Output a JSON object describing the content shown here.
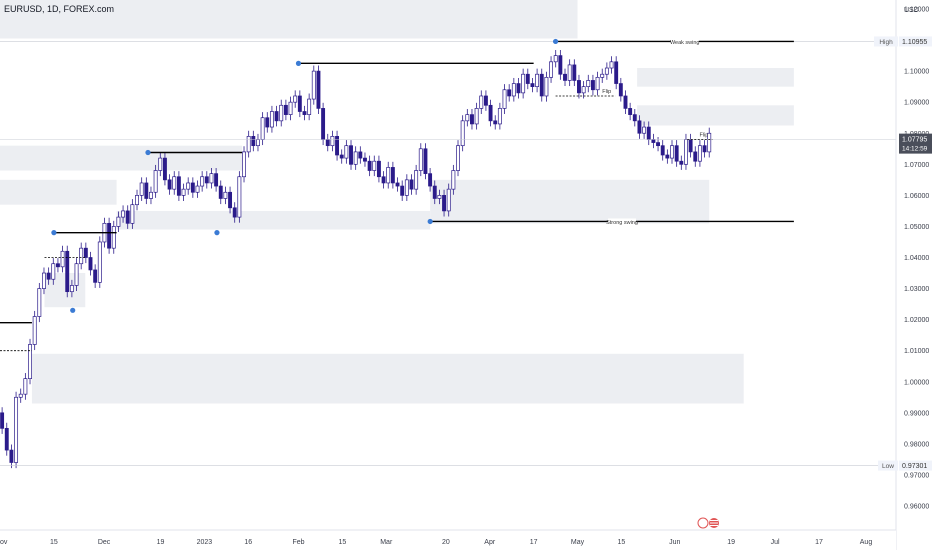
{
  "header": {
    "symbol_title": "EURUSD, 1D, FOREX.com"
  },
  "chart_data": {
    "type": "candlestick",
    "y_axis": {
      "unit": "USD",
      "ylim": [
        0.955,
        1.123
      ],
      "ticks": [
        0.96,
        0.97,
        0.98,
        0.99,
        1.0,
        1.01,
        1.02,
        1.03,
        1.04,
        1.05,
        1.06,
        1.07,
        1.08,
        1.09,
        1.1,
        1.11,
        1.12
      ],
      "tick_labels": [
        "0.96000",
        "0.97000",
        "0.98000",
        "0.99000",
        "1.00000",
        "1.01000",
        "1.02000",
        "1.03000",
        "1.04000",
        "1.05000",
        "1.06000",
        "1.07000",
        "1.08000",
        "1.09000",
        "1.10000",
        "1.11000",
        "1.12000"
      ]
    },
    "x_axis": {
      "labels": [
        {
          "date": "2022-11-01",
          "text": "ov"
        },
        {
          "date": "2022-11-15",
          "text": "15"
        },
        {
          "date": "2022-12-01",
          "text": "Dec"
        },
        {
          "date": "2022-12-19",
          "text": "19"
        },
        {
          "date": "2023-01-02",
          "text": "2023"
        },
        {
          "date": "2023-01-16",
          "text": "16"
        },
        {
          "date": "2023-02-01",
          "text": "Feb"
        },
        {
          "date": "2023-02-15",
          "text": "15"
        },
        {
          "date": "2023-03-01",
          "text": "Mar"
        },
        {
          "date": "2023-03-20",
          "text": "20"
        },
        {
          "date": "2023-04-03",
          "text": "Apr"
        },
        {
          "date": "2023-04-17",
          "text": "17"
        },
        {
          "date": "2023-05-01",
          "text": "May"
        },
        {
          "date": "2023-05-15",
          "text": "15"
        },
        {
          "date": "2023-06-01",
          "text": "Jun"
        },
        {
          "date": "2023-06-19",
          "text": "19"
        },
        {
          "date": "2023-07-03",
          "text": "Jul"
        },
        {
          "date": "2023-07-17",
          "text": "17"
        },
        {
          "date": "2023-08-01",
          "text": "Aug"
        }
      ]
    },
    "price_labels": {
      "high": {
        "label": "High",
        "value": "1.10955"
      },
      "low": {
        "label": "Low",
        "value": "0.97301"
      },
      "current": {
        "value": "1.07795",
        "countdown": "14:12:59"
      }
    },
    "candle_closes": [
      0.99,
      0.985,
      0.978,
      0.974,
      0.995,
      0.996,
      1.001,
      1.012,
      1.021,
      1.03,
      1.035,
      1.033,
      1.038,
      1.037,
      1.042,
      1.029,
      1.031,
      1.038,
      1.043,
      1.04,
      1.036,
      1.032,
      1.045,
      1.051,
      1.043,
      1.05,
      1.053,
      1.055,
      1.051,
      1.057,
      1.06,
      1.064,
      1.059,
      1.061,
      1.068,
      1.072,
      1.065,
      1.062,
      1.066,
      1.06,
      1.062,
      1.064,
      1.061,
      1.063,
      1.066,
      1.064,
      1.067,
      1.063,
      1.059,
      1.061,
      1.056,
      1.053,
      1.066,
      1.074,
      1.079,
      1.076,
      1.078,
      1.085,
      1.082,
      1.087,
      1.084,
      1.089,
      1.086,
      1.09,
      1.092,
      1.087,
      1.086,
      1.091,
      1.1,
      1.088,
      1.078,
      1.076,
      1.079,
      1.073,
      1.072,
      1.076,
      1.07,
      1.074,
      1.072,
      1.071,
      1.068,
      1.071,
      1.066,
      1.064,
      1.069,
      1.064,
      1.063,
      1.06,
      1.065,
      1.062,
      1.068,
      1.075,
      1.067,
      1.063,
      1.059,
      1.06,
      1.055,
      1.062,
      1.068,
      1.076,
      1.084,
      1.086,
      1.083,
      1.088,
      1.092,
      1.089,
      1.084,
      1.083,
      1.088,
      1.094,
      1.092,
      1.096,
      1.093,
      1.099,
      1.096,
      1.095,
      1.099,
      1.092,
      1.098,
      1.103,
      1.105,
      1.099,
      1.097,
      1.102,
      1.097,
      1.093,
      1.095,
      1.097,
      1.094,
      1.098,
      1.099,
      1.101,
      1.103,
      1.096,
      1.092,
      1.088,
      1.086,
      1.084,
      1.08,
      1.082,
      1.078,
      1.077,
      1.076,
      1.073,
      1.072,
      1.076,
      1.071,
      1.07,
      1.078,
      1.074,
      1.071,
      1.076,
      1.074,
      1.08
    ],
    "zones": [
      {
        "top": 1.1235,
        "bottom": 1.1105,
        "x0": "2022-10-25",
        "x1": "2023-05-01"
      },
      {
        "top": 1.101,
        "bottom": 1.095,
        "x0": "2023-05-20",
        "x1": "2023-07-09"
      },
      {
        "top": 1.089,
        "bottom": 1.0825,
        "x0": "2023-05-20",
        "x1": "2023-07-09"
      },
      {
        "top": 1.076,
        "bottom": 1.068,
        "x0": "2022-10-25",
        "x1": "2023-01-14"
      },
      {
        "top": 1.065,
        "bottom": 1.057,
        "x0": "2022-10-25",
        "x1": "2022-12-05"
      },
      {
        "top": 1.055,
        "bottom": 1.049,
        "x0": "2022-12-05",
        "x1": "2023-03-15"
      },
      {
        "top": 1.065,
        "bottom": 1.051,
        "x0": "2023-03-15",
        "x1": "2023-06-12"
      },
      {
        "top": 1.035,
        "bottom": 1.024,
        "x0": "2022-11-12",
        "x1": "2022-11-25"
      },
      {
        "top": 1.009,
        "bottom": 0.993,
        "x0": "2022-11-08",
        "x1": "2023-06-23"
      }
    ],
    "swing_levels": [
      {
        "y": 1.10955,
        "x0": "2023-04-24",
        "x1": "2023-07-09",
        "label": "Weak swing"
      },
      {
        "y": 1.0516,
        "x0": "2023-03-15",
        "x1": "2023-07-09",
        "label": "Strong swing"
      },
      {
        "y": 1.1025,
        "x0": "2023-02-01",
        "x1": "2023-04-17",
        "label": ""
      },
      {
        "y": 1.0738,
        "x0": "2022-12-15",
        "x1": "2023-01-14",
        "label": ""
      },
      {
        "y": 1.048,
        "x0": "2022-11-15",
        "x1": "2022-12-05",
        "label": ""
      },
      {
        "y": 1.019,
        "x0": "2022-10-25",
        "x1": "2022-11-08",
        "label": ""
      }
    ],
    "dashed_levels": [
      {
        "y": 1.092,
        "x0": "2023-04-24",
        "x1": "2023-05-13",
        "label": "Flip"
      },
      {
        "y": 1.078,
        "x0": "2023-06-05",
        "x1": "2023-06-13",
        "label": "Flip"
      },
      {
        "y": 1.04,
        "x0": "2022-11-12",
        "x1": "2022-11-25",
        "label": ""
      },
      {
        "y": 1.01,
        "x0": "2022-10-25",
        "x1": "2022-11-08",
        "label": ""
      }
    ],
    "swing_points": [
      {
        "date": "2023-04-24",
        "y": 1.10955
      },
      {
        "date": "2023-02-01",
        "y": 1.1025
      },
      {
        "date": "2022-12-15",
        "y": 1.0738
      },
      {
        "date": "2022-11-15",
        "y": 1.048
      },
      {
        "date": "2023-01-06",
        "y": 1.048
      },
      {
        "date": "2022-11-21",
        "y": 1.023
      },
      {
        "date": "2023-03-15",
        "y": 1.0516
      }
    ],
    "colors": {
      "bear_candle": "#2b1b8a",
      "bull_candle": "#ffffff",
      "candle_outline": "#2b1b8a",
      "zone": "#eceef2",
      "swing_point": "#3b7bd4",
      "level_line": "#000000",
      "axis_text": "#3a3e4a"
    }
  }
}
